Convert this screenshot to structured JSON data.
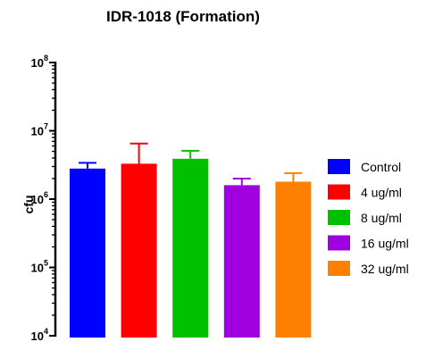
{
  "chart_data": {
    "type": "bar",
    "title": "IDR-1018 (Formation)",
    "xlabel": "",
    "ylabel": "cfu",
    "yscale": "log",
    "ylim": [
      10000,
      100000000
    ],
    "yticks": [
      {
        "base": "10",
        "exp": "8"
      },
      {
        "base": "10",
        "exp": "7"
      },
      {
        "base": "10",
        "exp": "6"
      },
      {
        "base": "10",
        "exp": "5"
      },
      {
        "base": "10",
        "exp": "4"
      }
    ],
    "categories": [
      "Control",
      "4 ug/ml",
      "8 ug/ml",
      "16 ug/ml",
      "32 ug/ml"
    ],
    "values": [
      2800000,
      3300000,
      3900000,
      1600000,
      1800000
    ],
    "errors": [
      600000,
      3200000,
      1200000,
      400000,
      600000
    ],
    "colors": [
      "#0000ff",
      "#ff0000",
      "#00c000",
      "#a000e0",
      "#ff8000"
    ],
    "legend": {
      "position": "right",
      "entries": [
        "Control",
        "4 ug/ml",
        "8 ug/ml",
        "16 ug/ml",
        "32 ug/ml"
      ]
    },
    "grid": false
  }
}
